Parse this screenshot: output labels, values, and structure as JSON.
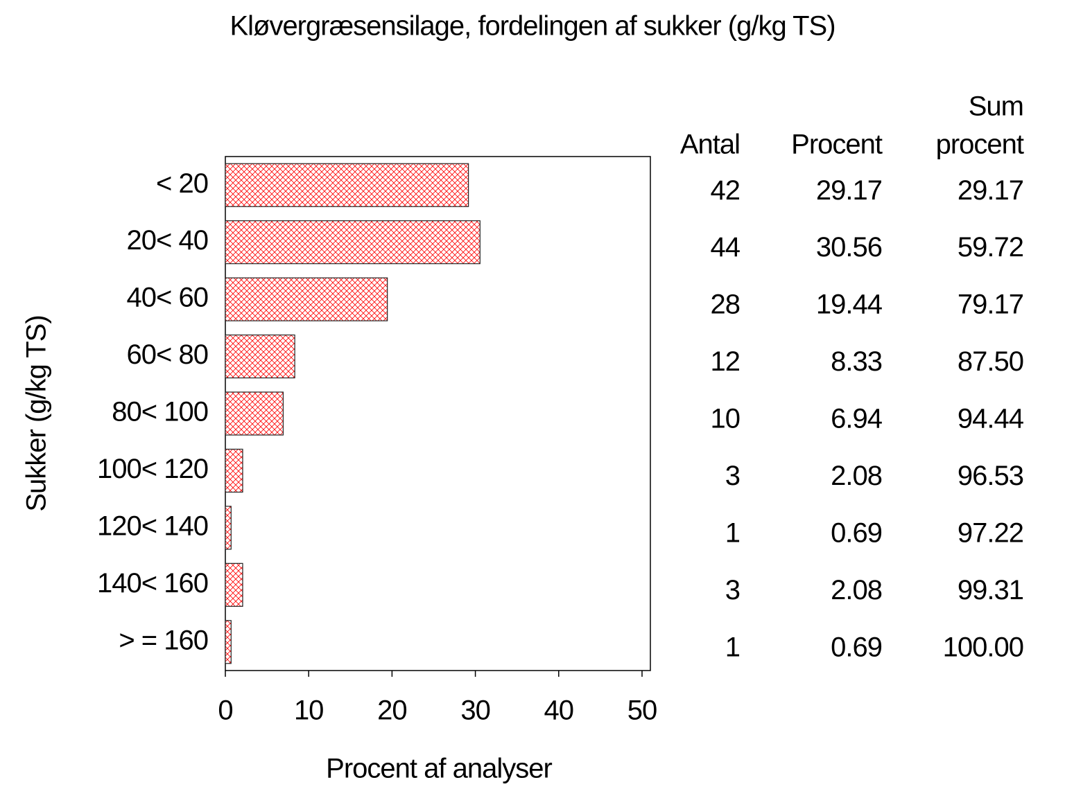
{
  "chart_data": {
    "type": "bar",
    "orientation": "horizontal",
    "title": "Kløvergræsensilage,  fordelingen  af  sukker  (g/kg  TS)",
    "x_label": "Procent  af  analyser",
    "y_label": "Sukker  (g/kg  TS)",
    "categories": [
      "< 20",
      "20< 40",
      "40< 60",
      "60< 80",
      "80< 100",
      "100< 120",
      "120< 140",
      "140< 160",
      "> = 160"
    ],
    "values": [
      29.17,
      30.56,
      19.44,
      8.33,
      6.94,
      2.08,
      0.69,
      2.08,
      0.69
    ],
    "color": "#ff0000",
    "xlim": [
      0,
      51
    ],
    "xticks": [
      0,
      10,
      20,
      30,
      40,
      50
    ],
    "table": {
      "headers": [
        [
          "Antal"
        ],
        [
          "Procent"
        ],
        [
          "Sum",
          "procent"
        ]
      ],
      "antal": [
        42,
        44,
        28,
        12,
        10,
        3,
        1,
        3,
        1
      ],
      "sum_procent": [
        "29.17",
        "59.72",
        "79.17",
        "87.50",
        "94.44",
        "96.53",
        "97.22",
        "99.31",
        "100.00"
      ]
    }
  }
}
